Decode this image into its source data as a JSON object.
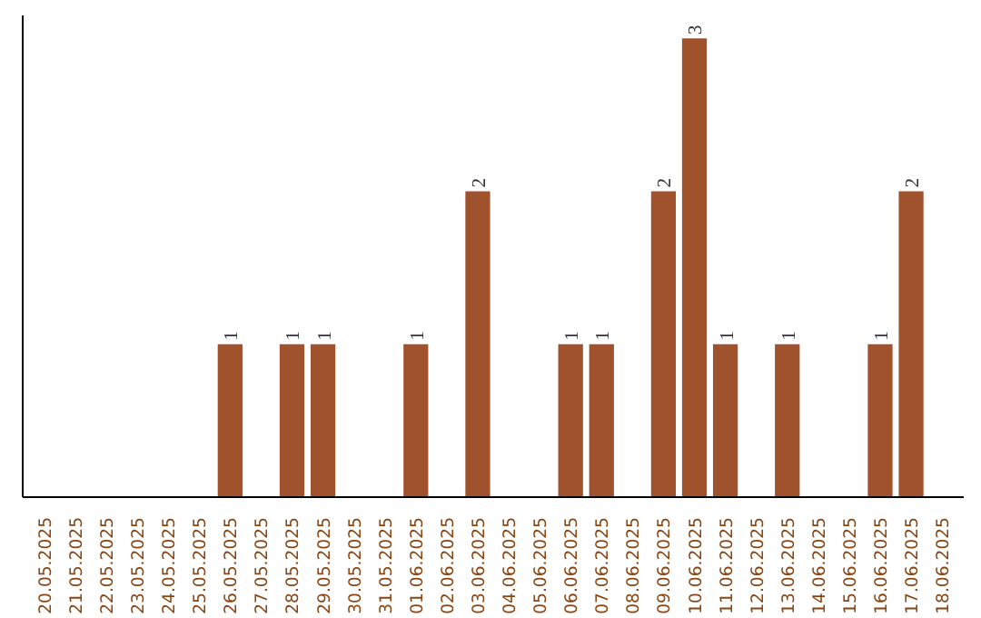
{
  "chart_data": {
    "type": "bar",
    "categories": [
      "20.05.2025",
      "21.05.2025",
      "22.05.2025",
      "23.05.2025",
      "24.05.2025",
      "25.05.2025",
      "26.05.2025",
      "27.05.2025",
      "28.05.2025",
      "29.05.2025",
      "30.05.2025",
      "31.05.2025",
      "01.06.2025",
      "02.06.2025",
      "03.06.2025",
      "04.06.2025",
      "05.06.2025",
      "06.06.2025",
      "07.06.2025",
      "08.06.2025",
      "09.06.2025",
      "10.06.2025",
      "11.06.2025",
      "12.06.2025",
      "13.06.2025",
      "14.06.2025",
      "15.06.2025",
      "16.06.2025",
      "17.06.2025",
      "18.06.2025"
    ],
    "values": [
      0,
      0,
      0,
      0,
      0,
      0,
      1,
      0,
      1,
      1,
      0,
      0,
      1,
      0,
      2,
      0,
      0,
      1,
      1,
      0,
      2,
      3,
      1,
      0,
      1,
      0,
      0,
      1,
      2,
      0
    ],
    "value_labels": [
      null,
      null,
      null,
      null,
      null,
      null,
      "1",
      null,
      "1",
      "1",
      null,
      null,
      "1",
      null,
      "2",
      null,
      null,
      "1",
      "1",
      null,
      "2",
      "3",
      "1",
      null,
      "1",
      null,
      null,
      "1",
      "2",
      null
    ],
    "color": "#a0522d",
    "ylim": [
      0,
      3.15
    ],
    "tick_labels": "x",
    "grid": false
  }
}
